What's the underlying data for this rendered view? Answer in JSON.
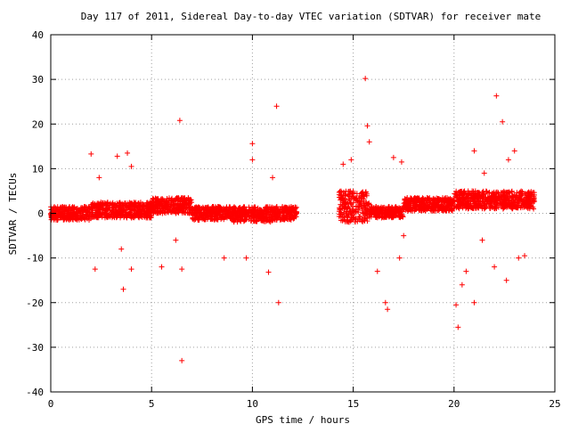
{
  "chart_data": {
    "type": "scatter",
    "title": "Day 117 of 2011, Sidereal Day-to-day VTEC variation (SDTVAR) for receiver mate",
    "xlabel": "GPS time / hours",
    "ylabel": "SDTVAR / TECUs",
    "xlim": [
      0,
      25
    ],
    "ylim": [
      -40,
      40
    ],
    "xticks": [
      0,
      5,
      10,
      15,
      20,
      25
    ],
    "yticks": [
      -40,
      -30,
      -20,
      -10,
      0,
      10,
      20,
      30,
      40
    ],
    "grid": true,
    "marker": "plus",
    "color": "#ff0000",
    "data_gap": [
      12.2,
      14.3
    ],
    "bands": [
      {
        "x": [
          0,
          2
        ],
        "y": [
          -1.5,
          1.5
        ]
      },
      {
        "x": [
          2,
          5
        ],
        "y": [
          -1.0,
          2.5
        ]
      },
      {
        "x": [
          5,
          7
        ],
        "y": [
          0,
          3.5
        ]
      },
      {
        "x": [
          7,
          9
        ],
        "y": [
          -1.5,
          1.5
        ]
      },
      {
        "x": [
          9,
          11
        ],
        "y": [
          -2.0,
          1.5
        ]
      },
      {
        "x": [
          11,
          12.2
        ],
        "y": [
          -1.5,
          1.5
        ]
      },
      {
        "x": [
          14.3,
          15.8
        ],
        "y": [
          -2.0,
          5.0
        ]
      },
      {
        "x": [
          15.8,
          17.5
        ],
        "y": [
          -1.0,
          1.5
        ]
      },
      {
        "x": [
          17.5,
          20
        ],
        "y": [
          0.5,
          3.5
        ]
      },
      {
        "x": [
          20,
          24
        ],
        "y": [
          1.0,
          5.0
        ]
      }
    ],
    "outliers": [
      {
        "x": 2.0,
        "y": 13.3
      },
      {
        "x": 2.2,
        "y": -12.5
      },
      {
        "x": 2.4,
        "y": 8.0
      },
      {
        "x": 3.3,
        "y": 12.8
      },
      {
        "x": 3.6,
        "y": -17.0
      },
      {
        "x": 3.8,
        "y": 13.5
      },
      {
        "x": 4.0,
        "y": 10.5
      },
      {
        "x": 4.0,
        "y": -12.5
      },
      {
        "x": 3.5,
        "y": -8.0
      },
      {
        "x": 5.5,
        "y": -12.0
      },
      {
        "x": 6.4,
        "y": 20.8
      },
      {
        "x": 6.5,
        "y": -12.5
      },
      {
        "x": 6.5,
        "y": -33.0
      },
      {
        "x": 6.2,
        "y": -6.0
      },
      {
        "x": 8.6,
        "y": -10.0
      },
      {
        "x": 9.7,
        "y": -10.0
      },
      {
        "x": 10.0,
        "y": 15.6
      },
      {
        "x": 10.0,
        "y": 12.0
      },
      {
        "x": 10.8,
        "y": -13.2
      },
      {
        "x": 11.2,
        "y": 24.0
      },
      {
        "x": 11.3,
        "y": -20.0
      },
      {
        "x": 11.0,
        "y": 8.0
      },
      {
        "x": 14.5,
        "y": 11.0
      },
      {
        "x": 14.9,
        "y": 12.0
      },
      {
        "x": 15.6,
        "y": 30.2
      },
      {
        "x": 15.7,
        "y": 19.6
      },
      {
        "x": 15.8,
        "y": 16.0
      },
      {
        "x": 16.2,
        "y": -13.0
      },
      {
        "x": 16.6,
        "y": -20.0
      },
      {
        "x": 16.7,
        "y": -21.5
      },
      {
        "x": 17.0,
        "y": 12.5
      },
      {
        "x": 17.4,
        "y": 11.5
      },
      {
        "x": 17.3,
        "y": -10.0
      },
      {
        "x": 17.5,
        "y": -5.0
      },
      {
        "x": 20.1,
        "y": -20.5
      },
      {
        "x": 20.2,
        "y": -25.5
      },
      {
        "x": 20.4,
        "y": -16.0
      },
      {
        "x": 20.6,
        "y": -13.0
      },
      {
        "x": 21.0,
        "y": -20.0
      },
      {
        "x": 21.0,
        "y": 14.0
      },
      {
        "x": 21.5,
        "y": 9.0
      },
      {
        "x": 22.1,
        "y": 26.3
      },
      {
        "x": 22.0,
        "y": -12.0
      },
      {
        "x": 22.4,
        "y": 20.5
      },
      {
        "x": 22.6,
        "y": -15.0
      },
      {
        "x": 22.7,
        "y": 12.0
      },
      {
        "x": 23.2,
        "y": -10.0
      },
      {
        "x": 23.0,
        "y": 14.0
      },
      {
        "x": 23.5,
        "y": -9.5
      },
      {
        "x": 21.4,
        "y": -6.0
      }
    ]
  }
}
